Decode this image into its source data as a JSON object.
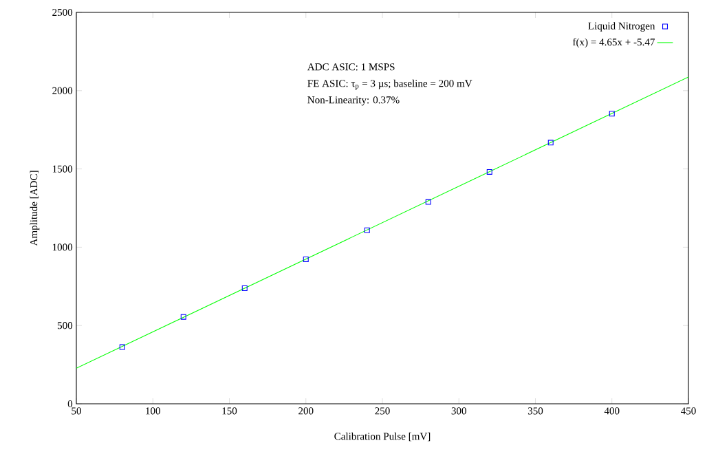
{
  "chart_data": {
    "type": "scatter",
    "xlabel": "Calibration Pulse [mV]",
    "ylabel": "Amplitude [ADC]",
    "xlim": [
      50,
      450
    ],
    "ylim": [
      0,
      2500
    ],
    "xticks": [
      50,
      100,
      150,
      200,
      250,
      300,
      350,
      400,
      450
    ],
    "yticks": [
      0,
      500,
      1000,
      1500,
      2000,
      2500
    ],
    "legend": "top right",
    "marker": "square",
    "grid": false,
    "annotations": [
      "ADC ASIC: 1 MSPS",
      "FE ASIC: τ$_{p}$ = 3 µs; baseline = 200 mV",
      "Non-Linearity: 0.37%"
    ],
    "series": [
      {
        "name": "Liquid Nitrogen",
        "color": "#0000ff",
        "x": [
          80,
          120,
          160,
          200,
          240,
          280,
          320,
          360,
          400
        ],
        "values": [
          362,
          555,
          738,
          923,
          1108,
          1289,
          1481,
          1668,
          1853
        ]
      },
      {
        "name": "f(x) = 4.65x + -5.47",
        "type": "line",
        "color": "#00ff00",
        "marker": "none",
        "x": [
          50,
          450
        ],
        "values": [
          227,
          2087
        ]
      }
    ]
  }
}
